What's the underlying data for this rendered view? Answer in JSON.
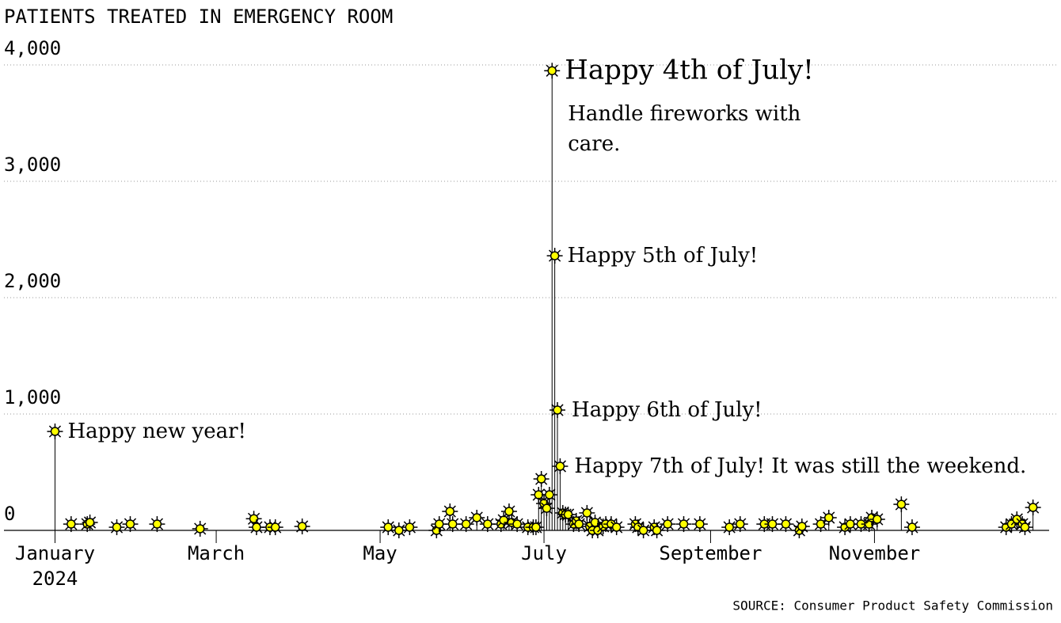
{
  "chart_data": {
    "type": "lollipop",
    "title": "PATIENTS TREATED IN EMERGENCY ROOM",
    "source": "SOURCE: Consumer Product Safety Commission",
    "x": [
      1,
      7,
      13,
      14,
      24,
      29,
      39,
      55,
      75,
      76,
      81,
      83,
      93,
      125,
      129,
      133,
      143,
      144,
      148,
      149,
      154,
      158,
      162,
      167,
      168,
      170,
      171,
      173,
      177,
      179,
      180,
      181,
      182,
      183,
      184,
      185,
      186,
      187,
      188,
      189,
      190,
      191,
      192,
      194,
      195,
      196,
      199,
      200,
      201,
      202,
      203,
      205,
      206,
      208,
      210,
      217,
      218,
      220,
      224,
      225,
      229,
      235,
      241,
      252,
      256,
      265,
      268,
      273,
      278,
      279,
      286,
      289,
      295,
      297,
      301,
      304,
      305,
      307,
      316,
      320,
      355,
      357,
      359,
      361,
      362,
      365
    ],
    "values": [
      850,
      54,
      54,
      68,
      27,
      54,
      54,
      14,
      100,
      27,
      27,
      27,
      34,
      27,
      0,
      27,
      0,
      54,
      163,
      54,
      54,
      109,
      54,
      54,
      88,
      163,
      68,
      54,
      27,
      27,
      27,
      306,
      442,
      231,
      190,
      306,
      3950,
      2360,
      1034,
      551,
      150,
      136,
      136,
      54,
      82,
      54,
      150,
      34,
      0,
      68,
      0,
      34,
      54,
      54,
      27,
      54,
      27,
      0,
      27,
      0,
      54,
      54,
      54,
      27,
      54,
      54,
      54,
      54,
      0,
      34,
      54,
      109,
      27,
      54,
      54,
      54,
      109,
      95,
      224,
      27,
      27,
      54,
      95,
      54,
      27,
      197
    ],
    "color": "#ffff00",
    "xlim": [
      -18,
      371
    ],
    "xticks": [
      {
        "value": 1,
        "label": "January 2024"
      },
      {
        "value": 61,
        "label": "March"
      },
      {
        "value": 122,
        "label": "May"
      },
      {
        "value": 183,
        "label": "July"
      },
      {
        "value": 245,
        "label": "September"
      },
      {
        "value": 306,
        "label": "November"
      }
    ],
    "ylim": [
      0,
      4000
    ],
    "yticks": [
      0,
      {
        "value": 1000,
        "label": "1,000"
      },
      {
        "value": 2000,
        "label": "2,000"
      },
      {
        "value": 3000,
        "label": "3,000"
      },
      {
        "value": 4000,
        "label": "4,000"
      }
    ],
    "grid": true,
    "annotations": [
      {
        "point": 0,
        "text": "Happy new year!"
      },
      {
        "point": 36,
        "text": "Happy 4th of July!",
        "note": "Handle fireworks with care."
      },
      {
        "point": 37,
        "text": "Happy 5th of July!"
      },
      {
        "point": 38,
        "text": "Happy 6th of July!"
      },
      {
        "point": 39,
        "text": "Happy 7th of July! It was still the weekend."
      }
    ]
  }
}
